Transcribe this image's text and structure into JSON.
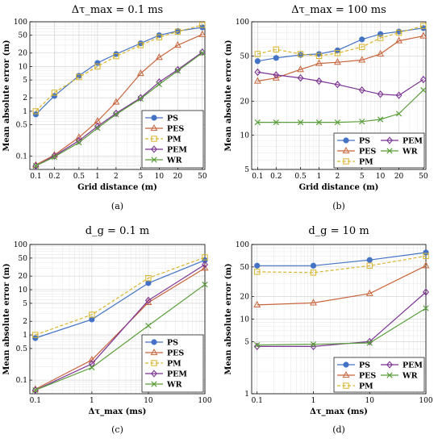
{
  "chart_data": [
    {
      "type": "line",
      "id": "a",
      "title": "Δτ_max = 0.1 ms",
      "caption": "(a)",
      "xlabel": "Grid distance (m)",
      "ylabel": "Mean absolute error (m)",
      "x_scale": "log",
      "y_scale": "log",
      "xlim": [
        0.08,
        55
      ],
      "ylim": [
        0.05,
        100
      ],
      "x_ticks": [
        0.1,
        0.2,
        0.5,
        1,
        2,
        5,
        10,
        20,
        50
      ],
      "x_tick_labels": [
        "0.1",
        "0.2",
        "0.5",
        "1",
        "2",
        "5",
        "10",
        "20",
        "50"
      ],
      "y_ticks": [
        0.1,
        0.5,
        1,
        2,
        5,
        10,
        20,
        50,
        100
      ],
      "y_tick_labels": [
        "0.1",
        "0.5",
        "1",
        "2",
        "5",
        "10",
        "20",
        "50",
        "100"
      ],
      "grid": true,
      "legend_position": "bottom-right",
      "legend_columns": 1,
      "x": [
        0.1,
        0.2,
        0.5,
        1,
        2,
        5,
        10,
        20,
        50
      ],
      "series": [
        {
          "name": "PS",
          "color": "#4472c4",
          "marker": "circle",
          "dash": "solid",
          "values": [
            0.85,
            2.2,
            6.2,
            12,
            19,
            33,
            50,
            62,
            75
          ]
        },
        {
          "name": "PES",
          "color": "#c8643b",
          "marker": "triangle",
          "dash": "solid",
          "values": [
            0.063,
            0.105,
            0.26,
            0.6,
            1.6,
            7,
            16,
            30,
            52
          ]
        },
        {
          "name": "PM",
          "color": "#d8b42a",
          "marker": "square",
          "dash": "dashed",
          "values": [
            1.0,
            2.6,
            5.8,
            10,
            17,
            30,
            45,
            60,
            85
          ]
        },
        {
          "name": "PEM",
          "color": "#7b3294",
          "marker": "diamond",
          "dash": "solid",
          "values": [
            0.06,
            0.1,
            0.22,
            0.46,
            0.9,
            2.0,
            4.5,
            8.5,
            21
          ]
        },
        {
          "name": "WR",
          "color": "#5a9e3a",
          "marker": "x",
          "dash": "solid",
          "values": [
            0.06,
            0.095,
            0.2,
            0.42,
            0.85,
            1.9,
            4.0,
            8.0,
            20
          ]
        }
      ]
    },
    {
      "type": "line",
      "id": "b",
      "title": "Δτ_max = 100 ms",
      "caption": "(b)",
      "xlabel": "Grid distance (m)",
      "ylabel": "Mean absolute error (m)",
      "x_scale": "log",
      "y_scale": "log",
      "xlim": [
        0.08,
        55
      ],
      "ylim": [
        5,
        100
      ],
      "x_ticks": [
        0.1,
        0.2,
        0.5,
        1,
        2,
        5,
        10,
        20,
        50
      ],
      "x_tick_labels": [
        "0.1",
        "0.2",
        "0.5",
        "1",
        "2",
        "5",
        "10",
        "20",
        "50"
      ],
      "y_ticks": [
        5,
        10,
        20,
        50,
        100
      ],
      "y_tick_labels": [
        "5",
        "10",
        "20",
        "50",
        "100"
      ],
      "grid": true,
      "legend_position": "bottom",
      "legend_columns": 2,
      "x": [
        0.1,
        0.2,
        0.5,
        1,
        2,
        5,
        10,
        20,
        50
      ],
      "series": [
        {
          "name": "PS",
          "color": "#4472c4",
          "marker": "circle",
          "dash": "solid",
          "values": [
            45,
            48,
            51,
            52,
            56,
            70,
            78,
            82,
            88
          ]
        },
        {
          "name": "PES",
          "color": "#c8643b",
          "marker": "triangle",
          "dash": "solid",
          "values": [
            30,
            32,
            38,
            43,
            44,
            46,
            52,
            68,
            75
          ]
        },
        {
          "name": "PM",
          "color": "#d8b42a",
          "marker": "square",
          "dash": "dashed",
          "values": [
            52,
            57,
            52,
            50,
            53,
            60,
            72,
            80,
            92
          ]
        },
        {
          "name": "PEM",
          "color": "#7b3294",
          "marker": "diamond",
          "dash": "solid",
          "values": [
            36,
            34,
            32,
            30,
            28,
            25,
            23,
            22.5,
            31
          ]
        },
        {
          "name": "WR",
          "color": "#5a9e3a",
          "marker": "x",
          "dash": "solid",
          "values": [
            13,
            13,
            13,
            13,
            13,
            13.2,
            13.8,
            15.5,
            25
          ]
        }
      ]
    },
    {
      "type": "line",
      "id": "c",
      "title": "d_g = 0.1 m",
      "caption": "(c)",
      "xlabel": "Δτ_max (ms)",
      "ylabel": "Mean absolute error (m)",
      "x_scale": "log",
      "y_scale": "log",
      "xlim": [
        0.08,
        100
      ],
      "ylim": [
        0.05,
        100
      ],
      "x_ticks": [
        0.1,
        1,
        10,
        100
      ],
      "x_tick_labels": [
        "0.1",
        "1",
        "10",
        "100"
      ],
      "y_ticks": [
        0.1,
        0.5,
        1,
        2,
        5,
        10,
        20,
        50,
        100
      ],
      "y_tick_labels": [
        "0.1",
        "0.5",
        "1",
        "2",
        "5",
        "10",
        "20",
        "50",
        "100"
      ],
      "grid": true,
      "legend_position": "bottom-right",
      "legend_columns": 1,
      "x": [
        0.1,
        1,
        10,
        100
      ],
      "series": [
        {
          "name": "PS",
          "color": "#4472c4",
          "marker": "circle",
          "dash": "solid",
          "values": [
            0.85,
            2.2,
            14,
            45
          ]
        },
        {
          "name": "PES",
          "color": "#c8643b",
          "marker": "triangle",
          "dash": "solid",
          "values": [
            0.063,
            0.28,
            5.2,
            30
          ]
        },
        {
          "name": "PM",
          "color": "#d8b42a",
          "marker": "square",
          "dash": "dashed",
          "values": [
            1.0,
            2.8,
            18,
            52
          ]
        },
        {
          "name": "PEM",
          "color": "#7b3294",
          "marker": "diamond",
          "dash": "solid",
          "values": [
            0.06,
            0.23,
            5.8,
            36
          ]
        },
        {
          "name": "WR",
          "color": "#5a9e3a",
          "marker": "x",
          "dash": "solid",
          "values": [
            0.06,
            0.19,
            1.6,
            13
          ]
        }
      ]
    },
    {
      "type": "line",
      "id": "d",
      "title": "d_g = 10 m",
      "caption": "(d)",
      "xlabel": "Δτ_max (ms)",
      "ylabel": "Mean absolute error (m)",
      "x_scale": "log",
      "y_scale": "log",
      "xlim": [
        0.08,
        100
      ],
      "ylim": [
        1,
        100
      ],
      "x_ticks": [
        0.1,
        1,
        10,
        100
      ],
      "x_tick_labels": [
        "0.1",
        "1",
        "10",
        "100"
      ],
      "y_ticks": [
        1,
        5,
        10,
        20,
        50,
        100
      ],
      "y_tick_labels": [
        "1",
        "5",
        "10",
        "20",
        "50",
        "100"
      ],
      "grid": true,
      "legend_position": "bottom-right",
      "legend_columns": 2,
      "x": [
        0.1,
        1,
        10,
        100
      ],
      "series": [
        {
          "name": "PS",
          "color": "#4472c4",
          "marker": "circle",
          "dash": "solid",
          "values": [
            52,
            52,
            62,
            78
          ]
        },
        {
          "name": "PES",
          "color": "#c8643b",
          "marker": "triangle",
          "dash": "solid",
          "values": [
            15.5,
            16.5,
            22,
            52
          ]
        },
        {
          "name": "PM",
          "color": "#d8b42a",
          "marker": "square",
          "dash": "dashed",
          "values": [
            43,
            42,
            52,
            70
          ]
        },
        {
          "name": "PEM",
          "color": "#7b3294",
          "marker": "diamond",
          "dash": "solid",
          "values": [
            4.3,
            4.3,
            5.0,
            23
          ]
        },
        {
          "name": "WR",
          "color": "#5a9e3a",
          "marker": "x",
          "dash": "solid",
          "values": [
            4.5,
            4.6,
            4.8,
            14
          ]
        }
      ]
    }
  ]
}
